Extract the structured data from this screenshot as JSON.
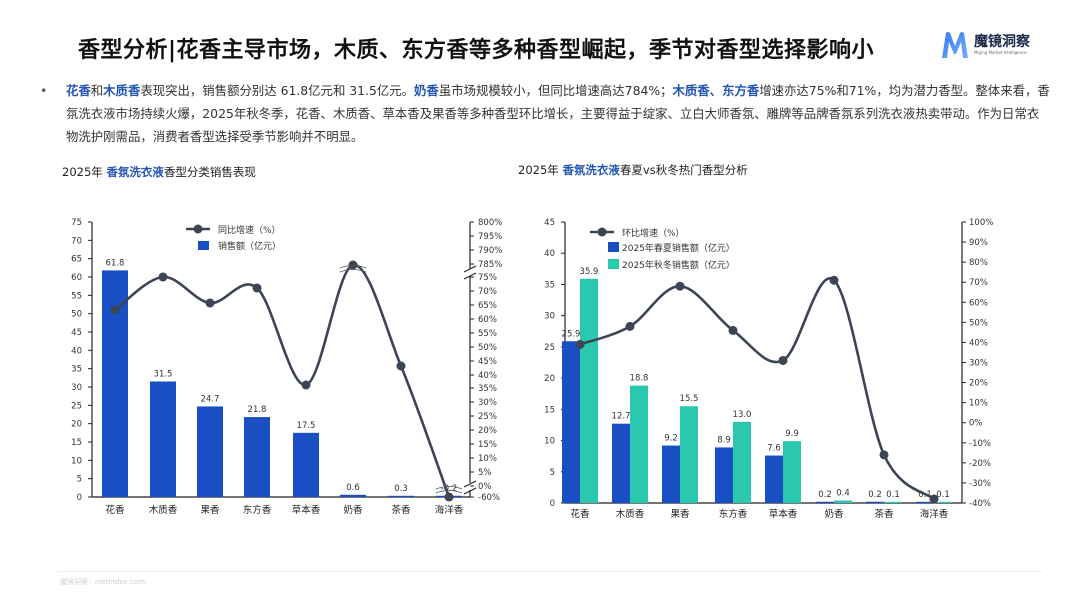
{
  "header": {
    "title": "香型分析|花香主导市场，木质、东方香等多种香型崛起，季节对香型选择影响小",
    "logo": {
      "name_cn": "魔镜洞察",
      "name_en": "Mojing Market Intelligence",
      "icon": "m-logo-icon"
    }
  },
  "summary": {
    "bullet": "•",
    "segments": [
      {
        "text": "花香",
        "highlight": true
      },
      {
        "text": "和",
        "highlight": false
      },
      {
        "text": "木质香",
        "highlight": true
      },
      {
        "text": "表现突出，销售额分别达 61.8亿元和 31.5亿元。",
        "highlight": false
      },
      {
        "text": "奶香",
        "highlight": true
      },
      {
        "text": "虽市场规模较小，但同比增速高达784%；",
        "highlight": false
      },
      {
        "text": "木质香、东方香",
        "highlight": true
      },
      {
        "text": "增速亦达75%和71%，均为潜力香型。整体来看，香氛洗衣液市场持续火爆，2025年秋冬季，花香、木质香、草本香及果香等多种香型环比增长，主要得益于绽家、立白大师香氛、雕牌等品牌香氛系列洗衣液热卖带动。作为日常衣物洗护刚需品，消费者香型选择受季节影响并不明显。",
        "highlight": false
      }
    ]
  },
  "left_chart_title": {
    "prefix": "2025年 ",
    "highlight": "香氛洗衣液",
    "suffix": "香型分类销售表现"
  },
  "right_chart_title": {
    "prefix": "2025年 ",
    "highlight": "香氛洗衣液",
    "suffix": "春夏vs秋冬热门香型分析"
  },
  "footer": {
    "text": "魔镜洞察：mktindex.com"
  },
  "colors": {
    "bar_blue": "#1a4fc4",
    "bar_teal": "#2bc8b0",
    "line": "#3b4556",
    "highlight_text": "#2456b5"
  },
  "chart_data": [
    {
      "type": "bar+line",
      "title": "2025年 香氛洗衣液香型分类销售表现",
      "categories": [
        "花香",
        "木质香",
        "果香",
        "东方香",
        "草本香",
        "奶香",
        "茶香",
        "海洋香"
      ],
      "series": [
        {
          "name": "销售额（亿元）",
          "type": "bar",
          "axis": "left",
          "values": [
            61.8,
            31.5,
            24.7,
            21.8,
            17.5,
            0.6,
            0.3,
            0.2
          ],
          "labels": [
            "61.8",
            "31.5",
            "24.7",
            "21.8",
            "17.5",
            "0.6",
            "0.3",
            "0.2"
          ]
        },
        {
          "name": "同比增速（%）",
          "type": "line",
          "axis": "right",
          "values": [
            51,
            75,
            54,
            71,
            36,
            784,
            43,
            -60
          ]
        }
      ],
      "left_axis": {
        "ylim": [
          0,
          75
        ],
        "ticks": [
          "0",
          "5",
          "10",
          "15",
          "20",
          "25",
          "30",
          "35",
          "40",
          "45",
          "50",
          "55",
          "60",
          "65",
          "70",
          "75"
        ]
      },
      "right_axis": {
        "broken": true,
        "ticks": [
          "-60%",
          "0%",
          "5%",
          "10%",
          "15%",
          "20%",
          "25%",
          "30%",
          "35%",
          "40%",
          "45%",
          "50%",
          "55%",
          "60%",
          "65%",
          "70%",
          "75%",
          "785%",
          "790%",
          "795%",
          "800%"
        ]
      },
      "legend": [
        "同比增速（%）",
        "销售额（亿元）"
      ],
      "legend_position": "top-center"
    },
    {
      "type": "bar+line",
      "title": "2025年 香氛洗衣液春夏vs秋冬热门香型分析",
      "categories": [
        "花香",
        "木质香",
        "果香",
        "东方香",
        "草本香",
        "奶香",
        "茶香",
        "海洋香"
      ],
      "series": [
        {
          "name": "2025年春夏销售额（亿元）",
          "type": "bar",
          "axis": "left",
          "values": [
            25.9,
            12.7,
            9.2,
            8.9,
            7.6,
            0.2,
            0.2,
            0.1
          ],
          "labels": [
            "25.9",
            "12.7",
            "9.2",
            "8.9",
            "7.6",
            "0.2",
            "0.2",
            "0.1"
          ]
        },
        {
          "name": "2025年秋冬销售额（亿元）",
          "type": "bar",
          "axis": "left",
          "values": [
            35.9,
            18.8,
            15.5,
            13.0,
            9.9,
            0.4,
            0.1,
            0.1
          ],
          "labels": [
            "35.9",
            "18.8",
            "15.5",
            "13.0",
            "9.9",
            "0.4",
            "0.1",
            "0.1"
          ]
        },
        {
          "name": "环比增速（%）",
          "type": "line",
          "axis": "right",
          "values": [
            39,
            48,
            68,
            46,
            31,
            71,
            -16,
            -38
          ]
        }
      ],
      "left_axis": {
        "ylim": [
          0,
          45
        ],
        "ticks": [
          "0",
          "5",
          "10",
          "15",
          "20",
          "25",
          "30",
          "35",
          "40",
          "45"
        ]
      },
      "right_axis": {
        "ylim": [
          -40,
          100
        ],
        "ticks": [
          "-40%",
          "-30%",
          "-20%",
          "-10%",
          "0%",
          "10%",
          "20%",
          "30%",
          "40%",
          "50%",
          "60%",
          "70%",
          "80%",
          "90%",
          "100%"
        ]
      },
      "legend": [
        "环比增速（%）",
        "2025年春夏销售额（亿元）",
        "2025年秋冬销售额（亿元）"
      ],
      "legend_position": "top-center"
    }
  ]
}
